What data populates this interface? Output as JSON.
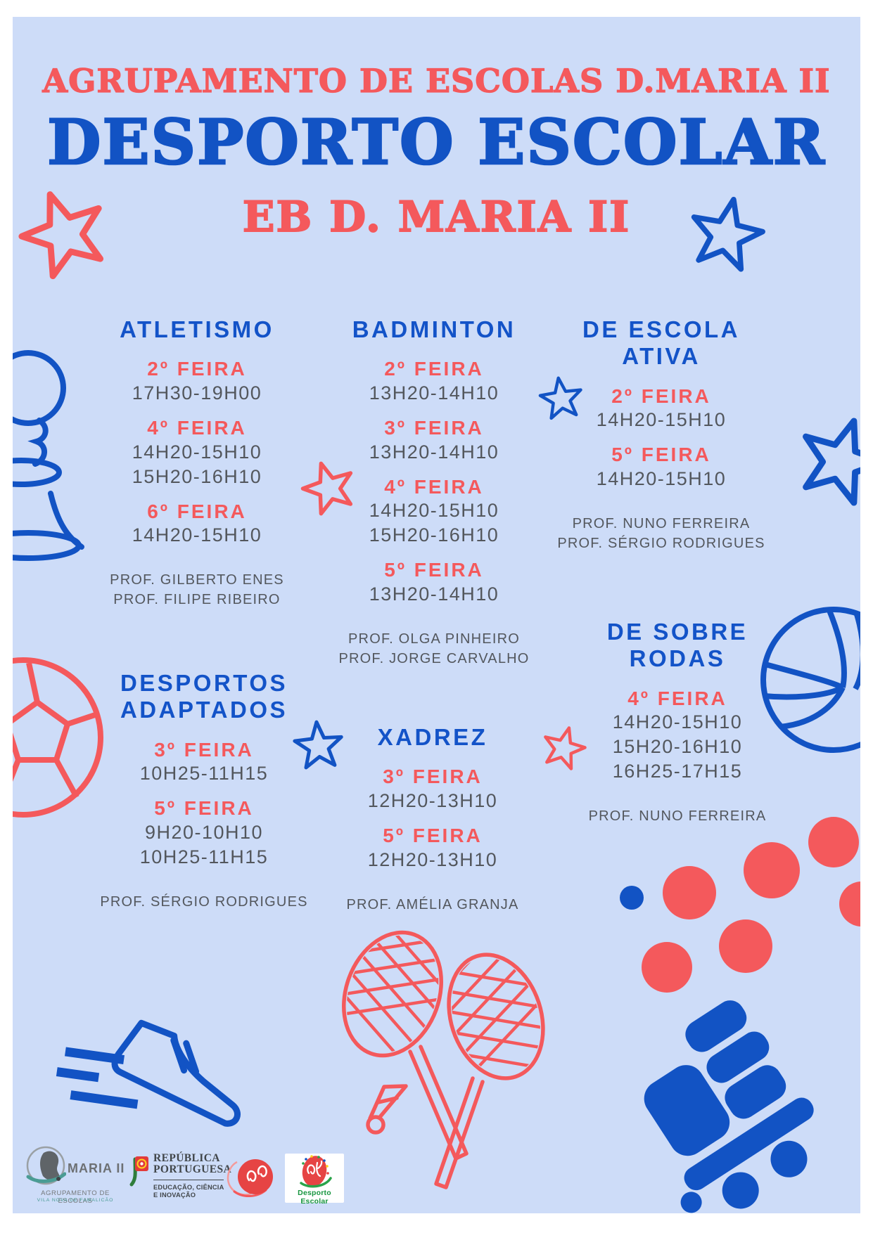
{
  "poster": {
    "header": {
      "line1": "AGRUPAMENTO DE ESCOLAS D.MARIA II",
      "line2": "DESPORTO ESCOLAR",
      "line3": "EB D. MARIA II"
    },
    "sections": [
      {
        "id": "atletismo",
        "title": "ATLETISMO",
        "entries": [
          {
            "day": "2º FEIRA",
            "times": [
              "17H30-19H00"
            ]
          },
          {
            "day": "4º FEIRA",
            "times": [
              "14H20-15H10",
              "15H20-16H10"
            ]
          },
          {
            "day": "6º FEIRA",
            "times": [
              "14H20-15H10"
            ]
          }
        ],
        "profs": [
          "PROF. GILBERTO ENES",
          "PROF. FILIPE RIBEIRO"
        ]
      },
      {
        "id": "badminton",
        "title": "BADMINTON",
        "entries": [
          {
            "day": "2º FEIRA",
            "times": [
              "13H20-14H10"
            ]
          },
          {
            "day": "3º FEIRA",
            "times": [
              "13H20-14H10"
            ]
          },
          {
            "day": "4º FEIRA",
            "times": [
              "14H20-15H10",
              "15H20-16H10"
            ]
          },
          {
            "day": "5º FEIRA",
            "times": [
              "13H20-14H10"
            ]
          }
        ],
        "profs": [
          "PROF. OLGA PINHEIRO",
          "PROF. JORGE CARVALHO"
        ]
      },
      {
        "id": "de-escola-ativa",
        "title": "DE ESCOLA ATIVA",
        "entries": [
          {
            "day": "2º FEIRA",
            "times": [
              "14H20-15H10"
            ]
          },
          {
            "day": "5º FEIRA",
            "times": [
              "14H20-15H10"
            ]
          }
        ],
        "profs": [
          "PROF. NUNO FERREIRA",
          "PROF. SÉRGIO RODRIGUES"
        ]
      },
      {
        "id": "desportos-adaptados",
        "title": "DESPORTOS ADAPTADOS",
        "entries": [
          {
            "day": "3º FEIRA",
            "times": [
              "10H25-11H15"
            ]
          },
          {
            "day": "5º FEIRA",
            "times": [
              "9H20-10H10",
              "10H25-11H15"
            ]
          }
        ],
        "profs": [
          "PROF. SÉRGIO RODRIGUES"
        ]
      },
      {
        "id": "xadrez",
        "title": "XADREZ",
        "entries": [
          {
            "day": "3º FEIRA",
            "times": [
              "12H20-13H10"
            ]
          },
          {
            "day": "5º FEIRA",
            "times": [
              "12H20-13H10"
            ]
          }
        ],
        "profs": [
          "PROF. AMÉLIA GRANJA"
        ]
      },
      {
        "id": "de-sobre-rodas",
        "title": "DE SOBRE RODAS",
        "entries": [
          {
            "day": "4º FEIRA",
            "times": [
              "14H20-15H10",
              "15H20-16H10",
              "16H25-17H15"
            ]
          }
        ],
        "profs": [
          "PROF. NUNO FERREIRA"
        ]
      }
    ],
    "footer": {
      "maria_logo": {
        "name": "MARIA II",
        "caption1": "AGRUPAMENTO DE ESCOLAS",
        "caption2": "VILA NOVA DE FAMALICÃO"
      },
      "republica_logo": {
        "line1": "REPÚBLICA",
        "line2": "PORTUGUESA",
        "caption1": "EDUCAÇÃO, CIÊNCIA",
        "caption2": "E INOVAÇÃO"
      },
      "desporto_logo": {
        "label": "Desporto Escolar"
      }
    },
    "colors": {
      "background": "#cddcf8",
      "coral": "#f4595c",
      "blue": "#1253c4",
      "text_gray": "#53575d",
      "teal": "#4a9c94",
      "green": "#17953f"
    }
  }
}
